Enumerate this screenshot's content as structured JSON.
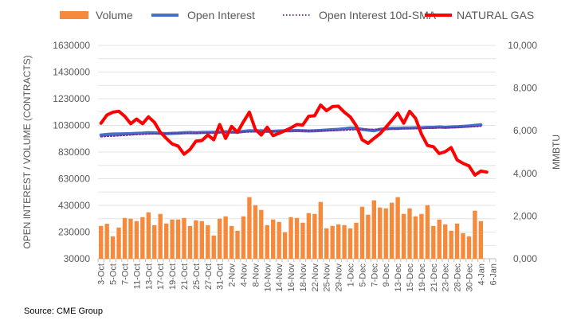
{
  "chart_data": {
    "type": "bar+line",
    "title": "",
    "ylabel": "OPEN INTEREST / VOLUME (CONTRACTS)",
    "y2label": "MMBTU",
    "source": "Source: CME Group",
    "ylim": [
      30000,
      1630000
    ],
    "y_ticks": [
      30000,
      230000,
      430000,
      630000,
      830000,
      1030000,
      1230000,
      1430000,
      1630000
    ],
    "y_tick_labels": [
      "30000",
      "230000",
      "430000",
      "630000",
      "830000",
      "1030000",
      "1230000",
      "1430000",
      "1630000"
    ],
    "y2lim": [
      0,
      10000
    ],
    "y2_ticks": [
      0,
      2000,
      4000,
      6000,
      8000,
      10000
    ],
    "y2_tick_labels": [
      "0,000",
      "2,000",
      "4,000",
      "6,000",
      "8,000",
      "10,000"
    ],
    "grid": true,
    "legend_position": "top",
    "categories": [
      "3-Oct",
      "4-Oct",
      "5-Oct",
      "6-Oct",
      "7-Oct",
      "10-Oct",
      "11-Oct",
      "12-Oct",
      "13-Oct",
      "14-Oct",
      "17-Oct",
      "18-Oct",
      "19-Oct",
      "20-Oct",
      "21-Oct",
      "24-Oct",
      "25-Oct",
      "26-Oct",
      "27-Oct",
      "28-Oct",
      "31-Oct",
      "1-Nov",
      "2-Nov",
      "3-Nov",
      "4-Nov",
      "7-Nov",
      "8-Nov",
      "9-Nov",
      "10-Nov",
      "11-Nov",
      "14-Nov",
      "15-Nov",
      "16-Nov",
      "17-Nov",
      "18-Nov",
      "21-Nov",
      "22-Nov",
      "23-Nov",
      "25-Nov",
      "28-Nov",
      "29-Nov",
      "30-Nov",
      "1-Dec",
      "2-Dec",
      "5-Dec",
      "6-Dec",
      "7-Dec",
      "8-Dec",
      "9-Dec",
      "12-Dec",
      "13-Dec",
      "14-Dec",
      "15-Dec",
      "16-Dec",
      "19-Dec",
      "20-Dec",
      "21-Dec",
      "22-Dec",
      "23-Dec",
      "27-Dec",
      "28-Dec",
      "29-Dec",
      "30-Dec",
      "3-Jan",
      "4-Jan",
      "5-Jan",
      "6-Jan"
    ],
    "x_tick_labels": [
      "3-Oct",
      "5-Oct",
      "7-Oct",
      "11-Oct",
      "13-Oct",
      "17-Oct",
      "19-Oct",
      "21-Oct",
      "25-Oct",
      "27-Oct",
      "31-Oct",
      "2-Nov",
      "4-Nov",
      "8-Nov",
      "10-Nov",
      "14-Nov",
      "16-Nov",
      "18-Nov",
      "22-Nov",
      "25-Nov",
      "29-Nov",
      "1-Dec",
      "5-Dec",
      "7-Dec",
      "9-Dec",
      "13-Dec",
      "15-Dec",
      "19-Dec",
      "21-Dec",
      "23-Dec",
      "28-Dec",
      "30-Dec",
      "4-Jan",
      "6-Jan"
    ],
    "series": [
      {
        "name": "Volume",
        "type": "bar",
        "axis": "left",
        "color": "#F58A3D",
        "values": [
          276000,
          292000,
          198000,
          264000,
          336000,
          330000,
          312000,
          342000,
          378000,
          282000,
          366000,
          294000,
          324000,
          324000,
          336000,
          276000,
          318000,
          312000,
          282000,
          204000,
          330000,
          348000,
          276000,
          240000,
          348000,
          492000,
          432000,
          396000,
          282000,
          324000,
          306000,
          228000,
          342000,
          336000,
          300000,
          372000,
          366000,
          456000,
          258000,
          276000,
          288000,
          282000,
          258000,
          300000,
          420000,
          360000,
          468000,
          414000,
          408000,
          450000,
          492000,
          366000,
          408000,
          348000,
          366000,
          432000,
          276000,
          324000,
          288000,
          240000,
          294000,
          222000,
          198000,
          390000,
          312000,
          null,
          null
        ]
      },
      {
        "name": "Open Interest",
        "type": "line",
        "axis": "left",
        "color": "#4472C4",
        "values": [
          958000,
          962000,
          965000,
          966000,
          967000,
          968000,
          970000,
          972000,
          975000,
          974000,
          970000,
          968000,
          970000,
          972000,
          975000,
          976000,
          975000,
          977000,
          978000,
          978000,
          980000,
          982000,
          980000,
          978000,
          985000,
          990000,
          988000,
          990000,
          985000,
          986000,
          988000,
          990000,
          990000,
          992000,
          990000,
          988000,
          990000,
          992000,
          995000,
          998000,
          1000000,
          1005000,
          1010000,
          1008000,
          1000000,
          995000,
          990000,
          1000000,
          1005000,
          1008000,
          1008000,
          1010000,
          1010000,
          1012000,
          1012000,
          1015000,
          1015000,
          1018000,
          1015000,
          1018000,
          1020000,
          1022000,
          1025000,
          1030000,
          1035000,
          null,
          null
        ]
      },
      {
        "name": "Open Interest 10d-SMA",
        "type": "line",
        "style": "dotted",
        "axis": "left",
        "color": "#7030A0",
        "values": [
          945000,
          948000,
          950000,
          953000,
          956000,
          959000,
          962000,
          964000,
          966000,
          967000,
          969000,
          970000,
          970000,
          970000,
          971000,
          971000,
          972000,
          973000,
          974000,
          975000,
          976000,
          977000,
          978000,
          979000,
          980000,
          981000,
          982000,
          983000,
          984000,
          985000,
          986000,
          987000,
          988000,
          988000,
          989000,
          989000,
          989000,
          990000,
          990000,
          991000,
          993000,
          995000,
          997000,
          999000,
          1000000,
          1000000,
          1000000,
          1001000,
          1002000,
          1003000,
          1004000,
          1005000,
          1006000,
          1007000,
          1008000,
          1009000,
          1010000,
          1012000,
          1013000,
          1014000,
          1015000,
          1017000,
          1019000,
          1021000,
          1024000,
          null,
          null
        ]
      },
      {
        "name": "NATURAL GAS",
        "type": "line",
        "axis": "right",
        "color": "#FF0000",
        "values": [
          6350,
          6740,
          6870,
          6910,
          6680,
          6330,
          6550,
          6330,
          6650,
          6390,
          5930,
          5640,
          5380,
          5280,
          4900,
          5120,
          5510,
          5540,
          5800,
          5580,
          6290,
          5640,
          6200,
          5930,
          6420,
          6870,
          6060,
          5800,
          6160,
          5770,
          5880,
          6000,
          6130,
          6290,
          6270,
          6680,
          6700,
          7200,
          6940,
          7130,
          7150,
          6870,
          6650,
          6230,
          5580,
          5410,
          5640,
          5860,
          6160,
          6490,
          6830,
          6350,
          6910,
          6580,
          5840,
          5310,
          5250,
          4930,
          5020,
          5210,
          4630,
          4470,
          4350,
          3920,
          4110,
          4060,
          null
        ]
      }
    ]
  }
}
